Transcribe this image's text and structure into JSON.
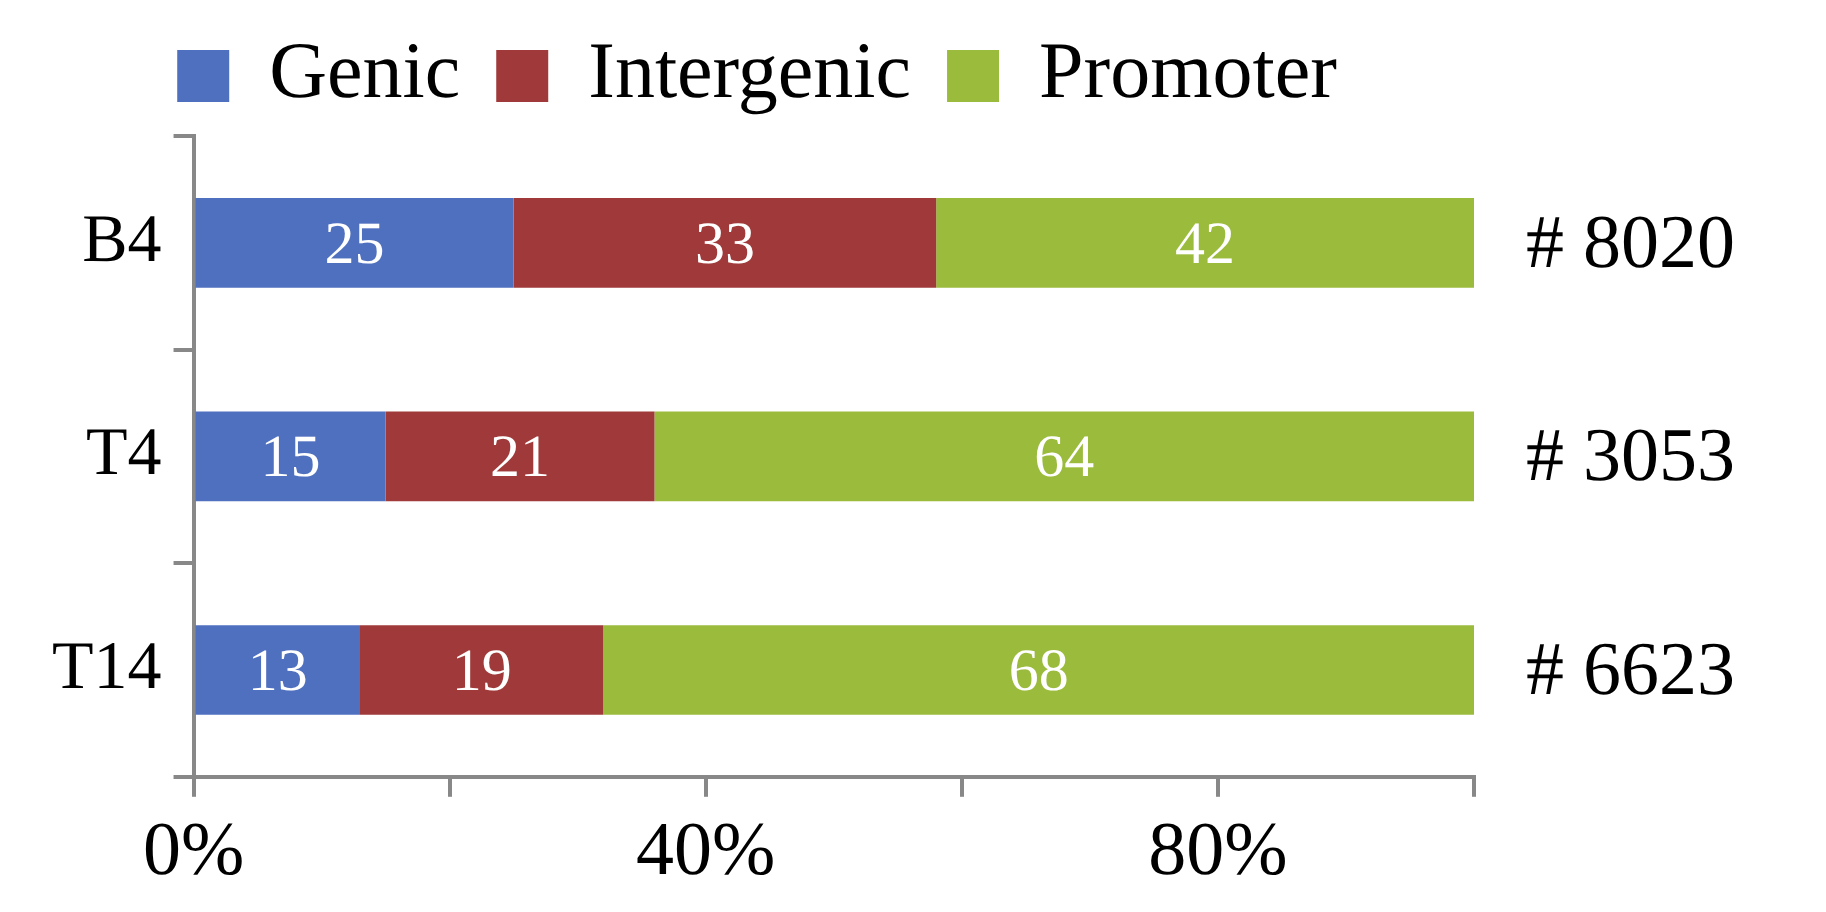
{
  "chart_data": {
    "type": "bar",
    "orientation": "horizontal",
    "stacked": true,
    "categories": [
      "B4",
      "T4",
      "T14"
    ],
    "series": [
      {
        "name": "Genic",
        "color": "#4f6fbf",
        "values": [
          25,
          15,
          13
        ]
      },
      {
        "name": "Intergenic",
        "color": "#a03a3a",
        "values": [
          33,
          21,
          19
        ]
      },
      {
        "name": "Promoter",
        "color": "#9bbb3c",
        "values": [
          42,
          64,
          68
        ]
      }
    ],
    "xlim": [
      0,
      100
    ],
    "xticks": [
      {
        "value": 0,
        "label": "0%"
      },
      {
        "value": 20,
        "label": null
      },
      {
        "value": 40,
        "label": "40%"
      },
      {
        "value": 60,
        "label": null
      },
      {
        "value": 80,
        "label": "80%"
      },
      {
        "value": 100,
        "label": null
      }
    ],
    "annotations": [
      "# 8020",
      "# 3053",
      "# 6623"
    ],
    "data_labels": true,
    "legend": "top",
    "grid": false
  }
}
